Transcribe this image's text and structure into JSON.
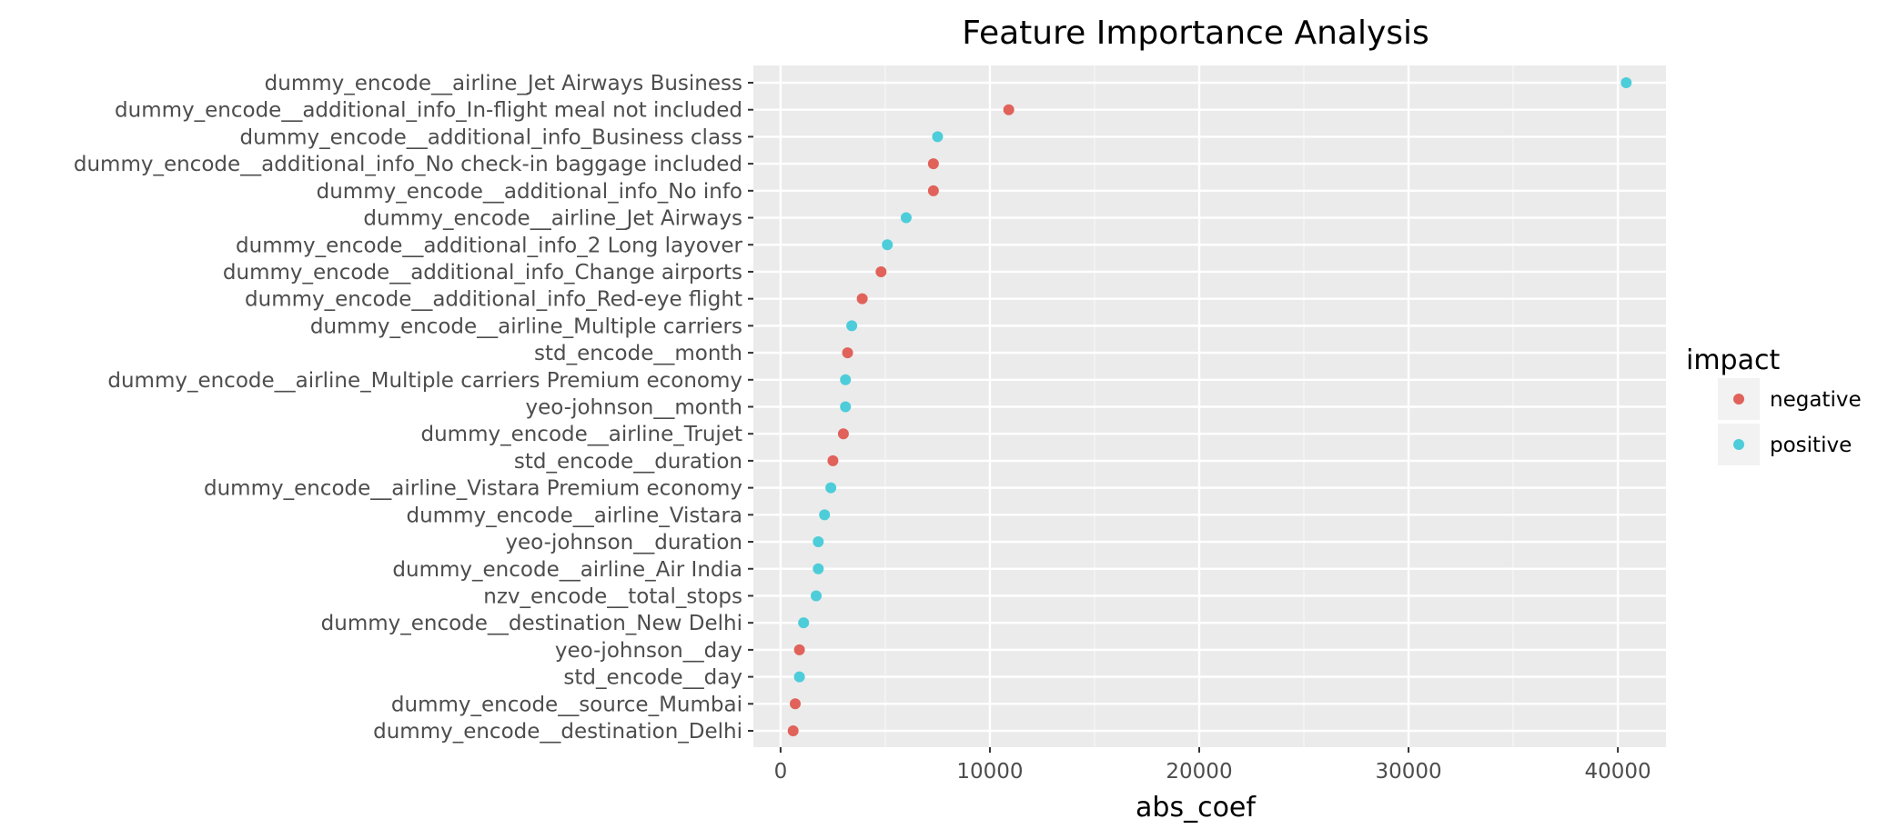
{
  "chart_data": {
    "type": "scatter",
    "title": "Feature Importance Analysis",
    "xlabel": "abs_coef",
    "ylabel": "",
    "xlim": [
      -1300,
      42300
    ],
    "x_ticks": [
      0,
      10000,
      20000,
      30000,
      40000
    ],
    "x_tick_labels": [
      "0",
      "10000",
      "20000",
      "30000",
      "40000"
    ],
    "grid": true,
    "legend": {
      "title": "impact",
      "position": "right",
      "entries": [
        {
          "label": "negative",
          "color": "#e0625a"
        },
        {
          "label": "positive",
          "color": "#4dcdd9"
        }
      ]
    },
    "categories": [
      "dummy_encode__airline_Jet Airways Business",
      "dummy_encode__additional_info_In-flight meal not included",
      "dummy_encode__additional_info_Business class",
      "dummy_encode__additional_info_No check-in baggage included",
      "dummy_encode__additional_info_No info",
      "dummy_encode__airline_Jet Airways",
      "dummy_encode__additional_info_2 Long layover",
      "dummy_encode__additional_info_Change airports",
      "dummy_encode__additional_info_Red-eye flight",
      "dummy_encode__airline_Multiple carriers",
      "std_encode__month",
      "dummy_encode__airline_Multiple carriers Premium economy",
      "yeo-johnson__month",
      "dummy_encode__airline_Trujet",
      "std_encode__duration",
      "dummy_encode__airline_Vistara Premium economy",
      "dummy_encode__airline_Vistara",
      "yeo-johnson__duration",
      "dummy_encode__airline_Air India",
      "nzv_encode__total_stops",
      "dummy_encode__destination_New Delhi",
      "yeo-johnson__day",
      "std_encode__day",
      "dummy_encode__source_Mumbai",
      "dummy_encode__destination_Delhi"
    ],
    "values": [
      40400,
      10900,
      7500,
      7300,
      7300,
      6000,
      5100,
      4800,
      3900,
      3400,
      3200,
      3100,
      3100,
      3000,
      2500,
      2400,
      2100,
      1800,
      1800,
      1700,
      1100,
      900,
      900,
      700,
      600
    ],
    "impact": [
      "positive",
      "negative",
      "positive",
      "negative",
      "negative",
      "positive",
      "positive",
      "negative",
      "negative",
      "positive",
      "negative",
      "positive",
      "positive",
      "negative",
      "negative",
      "positive",
      "positive",
      "positive",
      "positive",
      "positive",
      "positive",
      "negative",
      "positive",
      "negative",
      "negative"
    ]
  }
}
